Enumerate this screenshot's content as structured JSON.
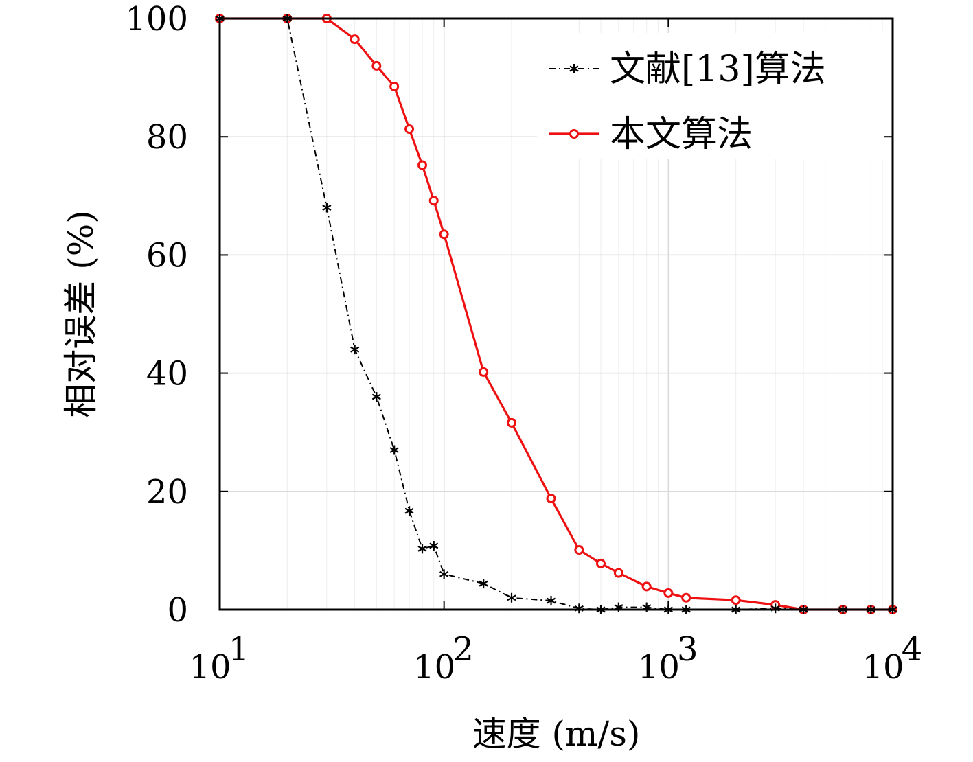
{
  "chart_data": {
    "type": "line",
    "xlabel": "速度 (m/s)",
    "ylabel": "相对误差 (%)",
    "x_scale": "log",
    "xlim": [
      10,
      10000
    ],
    "ylim": [
      0,
      100
    ],
    "x_ticks": [
      {
        "value": 10,
        "base": "10",
        "exp": "1"
      },
      {
        "value": 100,
        "base": "10",
        "exp": "2"
      },
      {
        "value": 1000,
        "base": "10",
        "exp": "3"
      },
      {
        "value": 10000,
        "base": "10",
        "exp": "4"
      }
    ],
    "y_ticks": [
      {
        "value": 0,
        "label": "0"
      },
      {
        "value": 20,
        "label": "20"
      },
      {
        "value": 40,
        "label": "40"
      },
      {
        "value": 60,
        "label": "60"
      },
      {
        "value": 80,
        "label": "80"
      },
      {
        "value": 100,
        "label": "100"
      }
    ],
    "grid": true,
    "legend_position": "top-right",
    "series": [
      {
        "name": "文献[13]算法",
        "color": "#000000",
        "line_style": "dash-dot",
        "marker": "asterisk",
        "points": [
          [
            10,
            100
          ],
          [
            20,
            100
          ],
          [
            30,
            68
          ],
          [
            40,
            44
          ],
          [
            50,
            36
          ],
          [
            60,
            27
          ],
          [
            70,
            16.7
          ],
          [
            80,
            10.3
          ],
          [
            90,
            10.8
          ],
          [
            100,
            6
          ],
          [
            150,
            4.4
          ],
          [
            200,
            2
          ],
          [
            300,
            1.5
          ],
          [
            400,
            0.2
          ],
          [
            500,
            0
          ],
          [
            600,
            0.4
          ],
          [
            800,
            0.4
          ],
          [
            1000,
            0
          ],
          [
            1200,
            0
          ],
          [
            2000,
            0
          ],
          [
            3000,
            0.2
          ],
          [
            4000,
            0
          ],
          [
            6000,
            0
          ],
          [
            8000,
            0
          ],
          [
            10000,
            0
          ]
        ]
      },
      {
        "name": "本文算法",
        "color": "#ee1111",
        "line_style": "solid",
        "marker": "circle",
        "points": [
          [
            10,
            100
          ],
          [
            20,
            100
          ],
          [
            30,
            100
          ],
          [
            40,
            96.5
          ],
          [
            50,
            92
          ],
          [
            60,
            88.5
          ],
          [
            70,
            81.3
          ],
          [
            80,
            75.2
          ],
          [
            90,
            69.2
          ],
          [
            100,
            63.5
          ],
          [
            150,
            40.2
          ],
          [
            200,
            31.6
          ],
          [
            300,
            18.8
          ],
          [
            400,
            10.1
          ],
          [
            500,
            7.8
          ],
          [
            600,
            6.2
          ],
          [
            800,
            3.9
          ],
          [
            1000,
            2.8
          ],
          [
            1200,
            2
          ],
          [
            2000,
            1.6
          ],
          [
            3000,
            0.8
          ],
          [
            4000,
            0
          ],
          [
            6000,
            0
          ],
          [
            8000,
            0
          ],
          [
            10000,
            0
          ]
        ]
      }
    ]
  }
}
